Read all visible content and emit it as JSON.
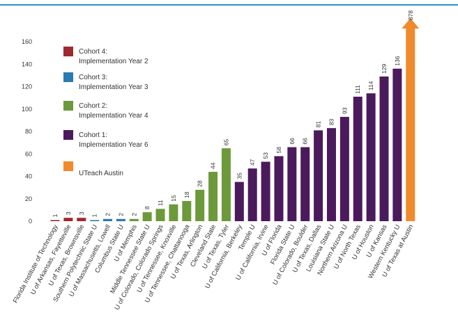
{
  "chart_data": {
    "type": "bar",
    "ylim": [
      0,
      170
    ],
    "yticks": [
      0,
      20,
      40,
      60,
      80,
      100,
      120,
      140,
      160
    ],
    "grid": false,
    "legend_position": "top-left",
    "legend": [
      {
        "name": "Cohort 4: Implementation Year 2",
        "line1": "Cohort 4:",
        "line2": "Implementation Year 2",
        "color": "#a0282f"
      },
      {
        "name": "Cohort 3: Implementation Year 3",
        "line1": "Cohort 3:",
        "line2": "Implementation Year 3",
        "color": "#2a7bb0"
      },
      {
        "name": "Cohort 2: Implementation Year 4",
        "line1": "Cohort 2:",
        "line2": "Implementation Year 4",
        "color": "#6c9a3a"
      },
      {
        "name": "Cohort 1: Implementation Year 6",
        "line1": "Cohort 1:",
        "line2": "Implementation Year 6",
        "color": "#4b1a5c"
      },
      {
        "name": "UTeach Austin",
        "line1": "UTeach Austin",
        "line2": "",
        "color": "#f08a2b"
      }
    ],
    "bars": [
      {
        "label": "Florida Institute of Technology",
        "value": 1,
        "cohort": 0
      },
      {
        "label": "U of Arkansas, Fayetteville",
        "value": 3,
        "cohort": 0
      },
      {
        "label": "U of Texas, Brownsville",
        "value": 3,
        "cohort": 0
      },
      {
        "label": "Southern Polytechnic State U",
        "value": 1,
        "cohort": 1
      },
      {
        "label": "U of Massachusetts, Lowell",
        "value": 2,
        "cohort": 1
      },
      {
        "label": "Columbus State U",
        "value": 2,
        "cohort": 1
      },
      {
        "label": "U of Memphis",
        "value": 2,
        "cohort": 2
      },
      {
        "label": "Middle Tennessee State U",
        "value": 8,
        "cohort": 2
      },
      {
        "label": "U of Colorado, Colorado Springs",
        "value": 11,
        "cohort": 2
      },
      {
        "label": "U of Tennessee, Knoxville",
        "value": 15,
        "cohort": 2
      },
      {
        "label": "U of Tennessee, Chattanooga",
        "value": 18,
        "cohort": 2
      },
      {
        "label": "U of Texas, Arlington",
        "value": 28,
        "cohort": 2
      },
      {
        "label": "Cleveland State",
        "value": 44,
        "cohort": 2
      },
      {
        "label": "U of Texas, Tyler",
        "value": 65,
        "cohort": 2
      },
      {
        "label": "U of California, Berkeley",
        "value": 35,
        "cohort": 3
      },
      {
        "label": "Temple U",
        "value": 47,
        "cohort": 3
      },
      {
        "label": "U of California, Irvine",
        "value": 53,
        "cohort": 3
      },
      {
        "label": "U of Florida",
        "value": 58,
        "cohort": 3
      },
      {
        "label": "Florida State U",
        "value": 66,
        "cohort": 3
      },
      {
        "label": "U of Colorado, Boulder",
        "value": 66,
        "cohort": 3
      },
      {
        "label": "U of Texas, Dallas",
        "value": 81,
        "cohort": 3
      },
      {
        "label": "Louisiana State U",
        "value": 83,
        "cohort": 3
      },
      {
        "label": "Northern Arizona U",
        "value": 93,
        "cohort": 3
      },
      {
        "label": "U of North Texas",
        "value": 111,
        "cohort": 3
      },
      {
        "label": "U of Houston",
        "value": 114,
        "cohort": 3
      },
      {
        "label": "U of Kansas",
        "value": 129,
        "cohort": 3
      },
      {
        "label": "Western Kentucky U",
        "value": 136,
        "cohort": 3
      }
    ],
    "austin": {
      "label": "U of Texas at Austin",
      "value": 878,
      "cohort": 4
    }
  }
}
